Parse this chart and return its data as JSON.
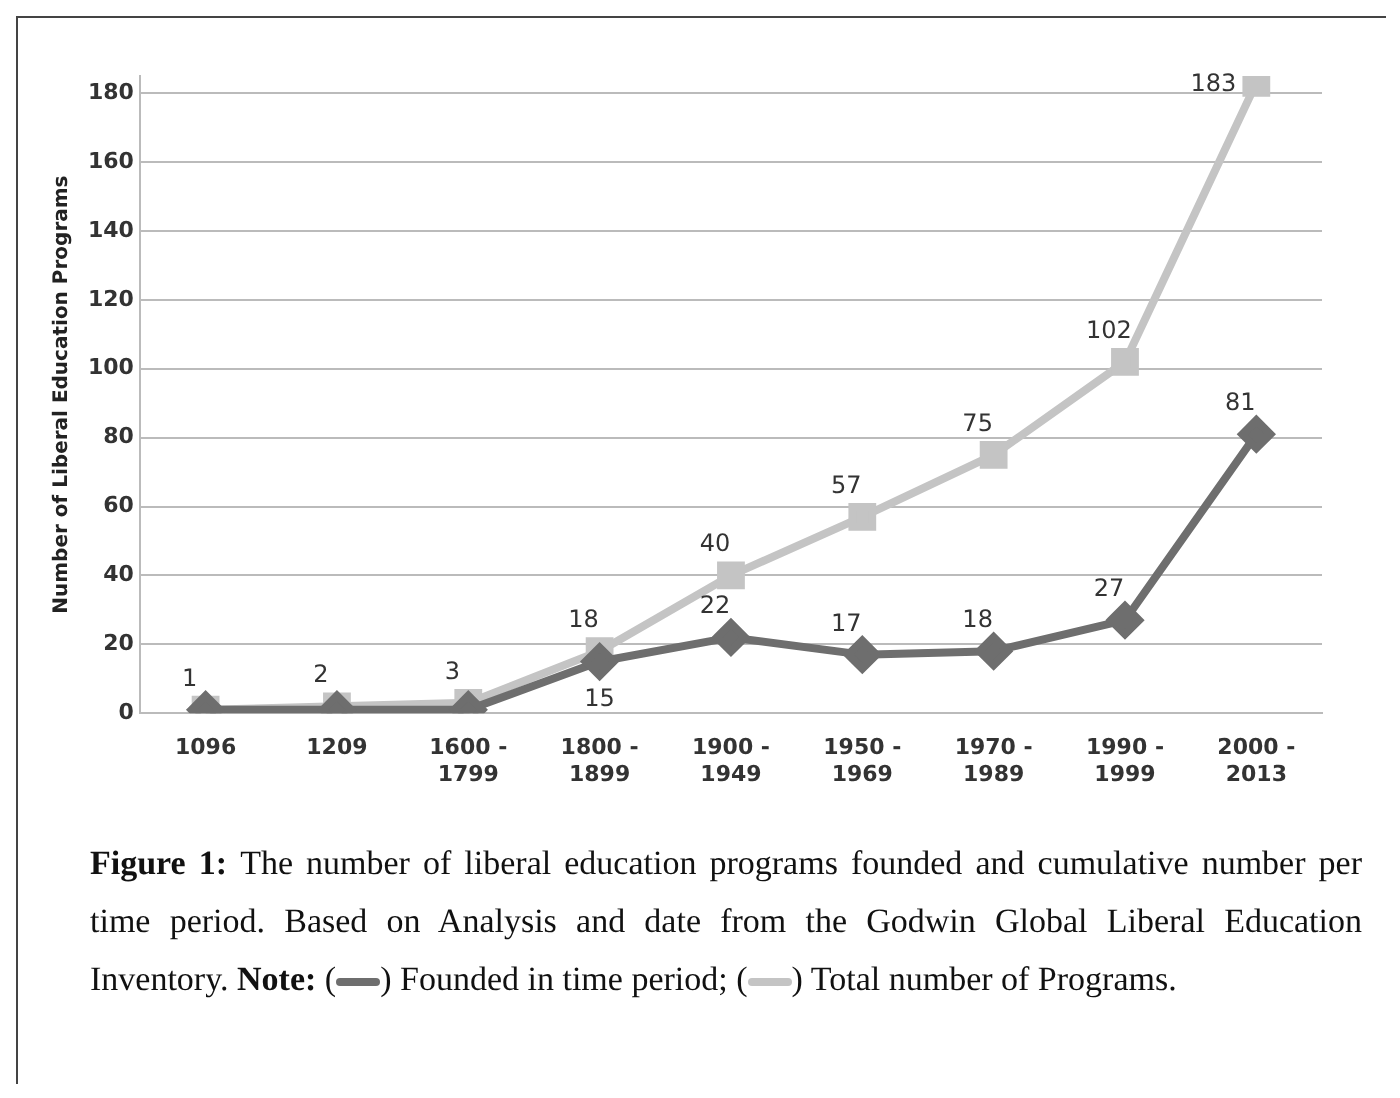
{
  "chart_data": {
    "type": "line",
    "ylabel": "Number of Liberal Education Programs",
    "categories": [
      "1096",
      "1209",
      "1600 - 1799",
      "1800 - 1899",
      "1900 - 1949",
      "1950 - 1969",
      "1970 - 1989",
      "1990 - 1999",
      "2000 - 2013"
    ],
    "series": [
      {
        "name": "Founded in time period",
        "color": "#6e6e6e",
        "marker": "diamond",
        "values": [
          1,
          1,
          1,
          15,
          22,
          17,
          18,
          27,
          81
        ],
        "value_labels": [
          null,
          null,
          null,
          "15",
          "22",
          "17",
          "18",
          "27",
          "81"
        ]
      },
      {
        "name": "Total number of Programs",
        "color": "#c4c4c4",
        "marker": "square",
        "values": [
          1,
          2,
          3,
          18,
          40,
          57,
          75,
          102,
          183
        ],
        "value_labels": [
          "1",
          "2",
          "3",
          "18",
          "40",
          "57",
          "75",
          "102",
          "183"
        ]
      }
    ],
    "ylim": [
      0,
      185
    ],
    "yticks": [
      0,
      20,
      40,
      60,
      80,
      100,
      120,
      140,
      160,
      180
    ],
    "grid": "y",
    "legend": "bottom",
    "annotations": [
      "Figure 1:",
      "The number of liberal education programs founded and cumulative number per time period. Based on Analysis and date from the Godwin Global Liberal Education Inventory.",
      "Note:",
      "(",
      ")",
      ";",
      "."
    ]
  }
}
